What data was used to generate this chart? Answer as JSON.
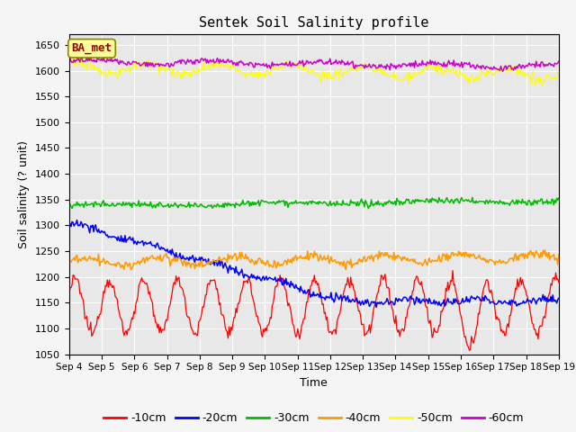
{
  "title": "Sentek Soil Salinity profile",
  "xlabel": "Time",
  "ylabel": "Soil salinity (? unit)",
  "ylim": [
    1050,
    1670
  ],
  "yticks": [
    1050,
    1100,
    1150,
    1200,
    1250,
    1300,
    1350,
    1400,
    1450,
    1500,
    1550,
    1600,
    1650
  ],
  "n_points": 500,
  "days": 15,
  "legend_labels": [
    "-10cm",
    "-20cm",
    "-30cm",
    "-40cm",
    "-50cm",
    "-60cm"
  ],
  "legend_colors": [
    "#ff0000",
    "#0000ff",
    "#00bb00",
    "#ff9900",
    "#ffff00",
    "#cc00cc"
  ],
  "annotation_text": "BA_met",
  "annotation_box_facecolor": "#ffff99",
  "annotation_text_color": "#990000",
  "annotation_edge_color": "#888800",
  "fig_facecolor": "#f5f5f5",
  "ax_facecolor": "#e8e8e8",
  "grid_color": "#ffffff",
  "xtick_labels": [
    "Sep 4",
    "Sep 5",
    "Sep 6",
    "Sep 7",
    "Sep 8",
    "Sep 9",
    "Sep 10",
    "Sep 11",
    "Sep 12",
    "Sep 13",
    "Sep 14",
    "Sep 15",
    "Sep 16",
    "Sep 17",
    "Sep 18",
    "Sep 19"
  ]
}
